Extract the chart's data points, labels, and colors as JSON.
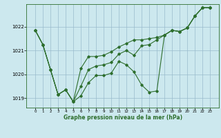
{
  "bg_color": "#cce8ee",
  "grid_color": "#99bbcc",
  "line_color": "#2d6e2d",
  "hours": [
    0,
    1,
    2,
    3,
    4,
    5,
    6,
    7,
    8,
    9,
    10,
    11,
    12,
    13,
    14,
    15,
    16,
    17,
    18,
    19,
    20,
    21,
    22,
    23
  ],
  "series1": [
    1021.85,
    1021.25,
    1020.2,
    1019.15,
    1019.35,
    1018.85,
    1019.1,
    1019.65,
    1019.95,
    1019.95,
    1020.05,
    1020.55,
    1020.4,
    1020.1,
    1019.55,
    1019.25,
    1019.3,
    1021.65,
    1021.85,
    1021.8,
    1021.95,
    1022.45,
    1022.8,
    1022.8
  ],
  "series2": [
    1021.85,
    1021.25,
    1020.2,
    1019.15,
    1019.35,
    1018.85,
    1020.25,
    1020.75,
    1020.75,
    1020.8,
    1020.95,
    1021.15,
    1021.3,
    1021.45,
    1021.45,
    1021.5,
    1021.55,
    1021.65,
    1021.85,
    1021.8,
    1021.95,
    1022.45,
    1022.8,
    1022.8
  ],
  "series3": [
    1021.85,
    1021.25,
    1020.2,
    1019.15,
    1019.35,
    1018.85,
    1019.5,
    1020.2,
    1020.35,
    1020.4,
    1020.5,
    1020.85,
    1021.0,
    1020.8,
    1021.2,
    1021.25,
    1021.45,
    1021.65,
    1021.85,
    1021.8,
    1021.95,
    1022.45,
    1022.8,
    1022.8
  ],
  "ylim": [
    1018.6,
    1022.95
  ],
  "yticks": [
    1019,
    1020,
    1021,
    1022
  ],
  "xlabel": "Graphe pression niveau de la mer (hPa)",
  "figsize": [
    3.2,
    2.0
  ],
  "dpi": 100
}
